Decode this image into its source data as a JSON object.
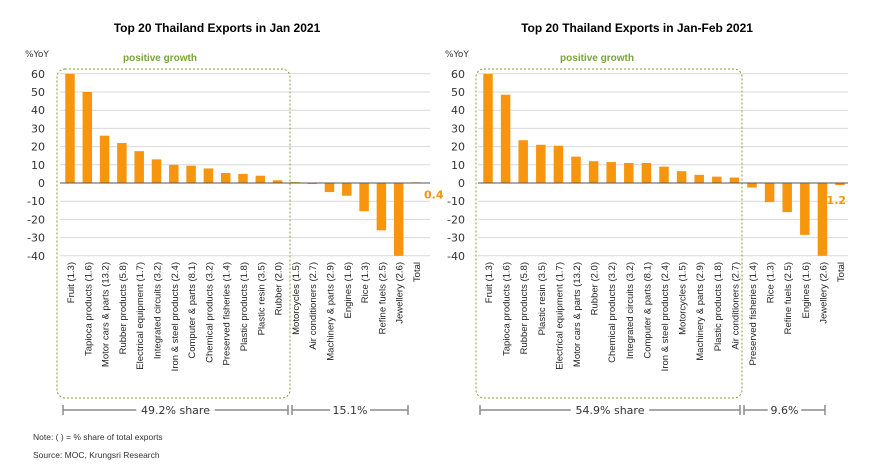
{
  "chart_data": [
    {
      "type": "bar",
      "title": "Top 20 Thailand Exports in Jan 2021",
      "ylabel": "%YoY",
      "ylim": [
        -40,
        60
      ],
      "yticks": [
        60,
        50,
        40,
        30,
        20,
        10,
        0,
        -10,
        -20,
        -30,
        -40
      ],
      "grid": true,
      "bar_color": "#f7960e",
      "highlight_label": "positive growth",
      "highlight_color": "#7aa33a",
      "categories": [
        "Fruit (1.3)",
        "Tapioca products (1.6)",
        "Motor cars & parts (13.2)",
        "Rubber products (5.8)",
        "Electrical equipment (1.7)",
        "Integrated circuits (3.2)",
        "Iron & steel products (2.4)",
        "Computer & parts (8.1)",
        "Chemical products (3.2)",
        "Preserved fisheries (1.4)",
        "Plastic products (1.8)",
        "Plastic resin (3.5)",
        "Rubber (2.0)",
        "Motorcycles (1.5)",
        "Air conditioners (2.7)",
        "Machinery & parts (2.9)",
        "Engines (1.6)",
        "Rice (1.3)",
        "Refine fuels (2.5)",
        "Jewellery (2.6)",
        "Total"
      ],
      "values": [
        60,
        50,
        26,
        22,
        17.5,
        13,
        10,
        9.5,
        8,
        5.5,
        5,
        4,
        1.5,
        0.5,
        -0.5,
        -5,
        -7,
        -15.5,
        -26,
        -40,
        0.4
      ],
      "total_label": "0.4",
      "share_labels": [
        "49.2% share",
        "15.1%"
      ]
    },
    {
      "type": "bar",
      "title": "Top 20 Thailand Exports in Jan-Feb 2021",
      "ylabel": "%YoY",
      "ylim": [
        -40,
        60
      ],
      "yticks": [
        60,
        50,
        40,
        30,
        20,
        10,
        0,
        -10,
        -20,
        -30,
        -40
      ],
      "grid": true,
      "bar_color": "#f7960e",
      "highlight_label": "positive growth",
      "highlight_color": "#7aa33a",
      "categories": [
        "Fruit (1.3)",
        "Tapioca products (1.6)",
        "Rubber products (5.8)",
        "Plastic resin (3.5)",
        "Electrical equipment (1.7)",
        "Motor cars & parts (13.2)",
        "Rubber (2.0)",
        "Chemical products (3.2)",
        "Integrated circuits (3.2)",
        "Computer & parts (8.1)",
        "Iron & steel products (2.4)",
        "Motorcycles (1.5)",
        "Machinery & parts (2.9)",
        "Plastic products (1.8)",
        "Air conditioners (2.7)",
        "Preserved fisheries (1.4)",
        "Rice (1.3)",
        "Refine fuels (2.5)",
        "Engines (1.6)",
        "Jewellery (2.6)",
        "Total"
      ],
      "values": [
        60,
        48.5,
        23.5,
        21,
        20.5,
        14.5,
        12,
        11.5,
        11,
        11,
        9,
        6.5,
        4.5,
        3.5,
        3,
        -2.5,
        -10.5,
        -16,
        -28.5,
        -40,
        -1.2
      ],
      "total_label": "-1.2",
      "share_labels": [
        "54.9% share",
        "9.6%"
      ]
    }
  ],
  "notes": {
    "note": "Note:  (     ) = % share of total exports",
    "source": "Source: MOC, Krungsri Research"
  }
}
